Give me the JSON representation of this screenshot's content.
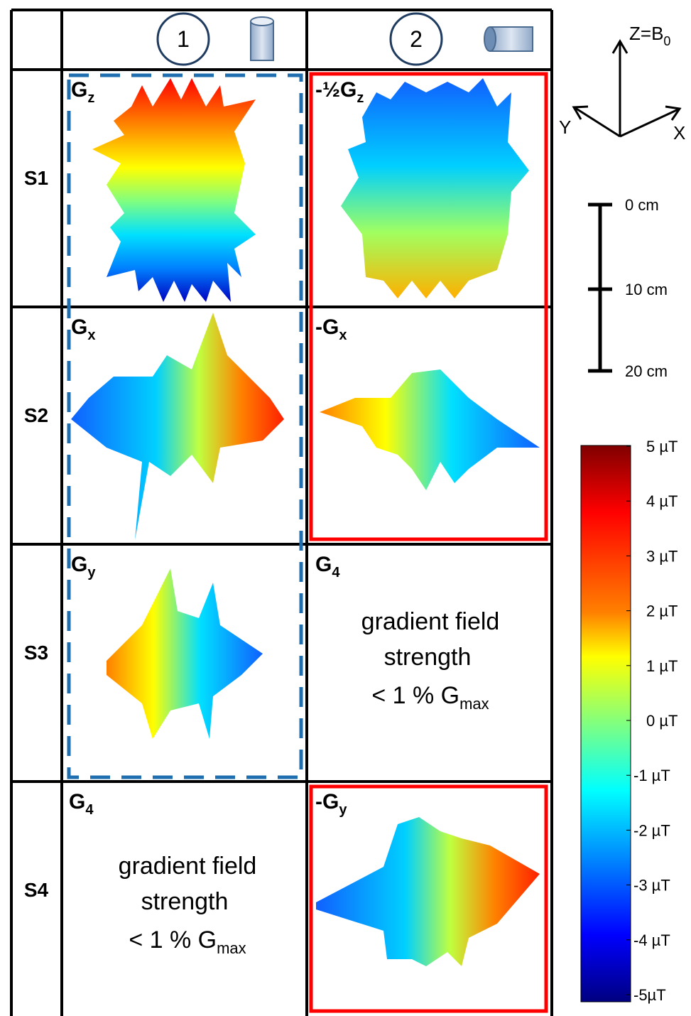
{
  "header": {
    "columns": [
      "1",
      "2"
    ]
  },
  "rows": [
    {
      "label": "S1",
      "cells": [
        {
          "main": "G",
          "sub": "z"
        },
        {
          "main": "-½G",
          "sub": "z"
        }
      ]
    },
    {
      "label": "S2",
      "cells": [
        {
          "main": "G",
          "sub": "x"
        },
        {
          "main": "-G",
          "sub": "x"
        }
      ]
    },
    {
      "label": "S3",
      "cells": [
        {
          "main": "G",
          "sub": "y"
        },
        {
          "main": "G",
          "sub": "4"
        }
      ]
    },
    {
      "label": "S4",
      "cells": [
        {
          "main": "G",
          "sub": "4"
        },
        {
          "main": "-G",
          "sub": "y"
        }
      ]
    }
  ],
  "note": {
    "line1": "gradient field",
    "line2": "strength",
    "line3": "< 1 % G",
    "sub": "max"
  },
  "axes": {
    "z": {
      "main": "Z=B",
      "sub": "0"
    },
    "y": "Y",
    "x": "X"
  },
  "scale_bar": [
    "0 cm",
    "10 cm",
    "20 cm"
  ],
  "colorbar": [
    "5 µT",
    "4 µT",
    "3 µT",
    "2 µT",
    "1 µT",
    "0 µT",
    "-1 µT",
    "-2 µT",
    "-3 µT",
    "-4 µT",
    "-5µT"
  ]
}
